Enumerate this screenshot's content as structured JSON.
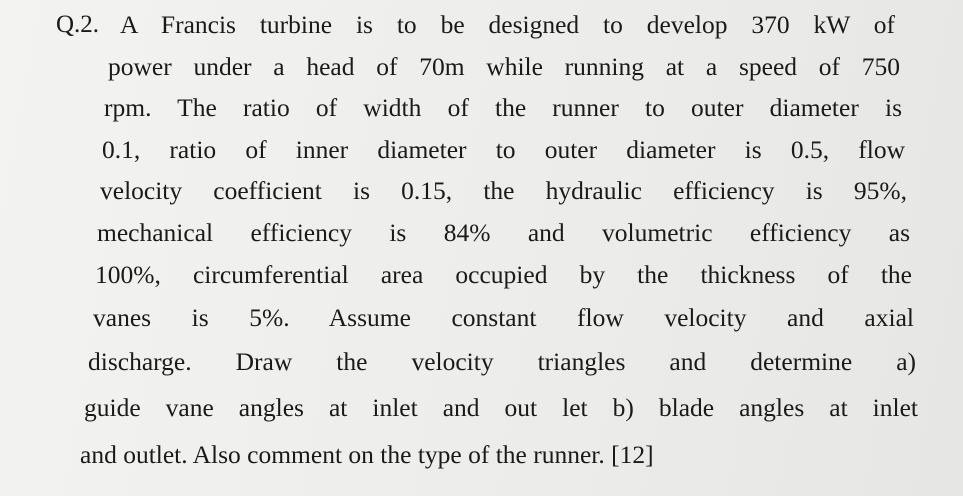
{
  "question": {
    "number": "Q.2.",
    "lines": [
      "A Francis turbine is to be designed to develop 370 kW of",
      "power under a head of 70m while running at a speed of 750",
      "rpm. The ratio of width of the runner to outer diameter is",
      "0.1, ratio of inner diameter to outer diameter is 0.5, flow",
      "velocity coefficient is 0.15, the hydraulic efficiency is 95%,",
      "mechanical efficiency is 84% and volumetric efficiency as",
      "100%, circumferential area occupied by the thickness of the",
      "vanes is 5%. Assume constant flow velocity and axial",
      "discharge. Draw the velocity triangles and determine a)",
      "guide vane angles at inlet and out let b) blade angles at inlet",
      "and outlet. Also comment on the type of the runner. [12]"
    ]
  }
}
